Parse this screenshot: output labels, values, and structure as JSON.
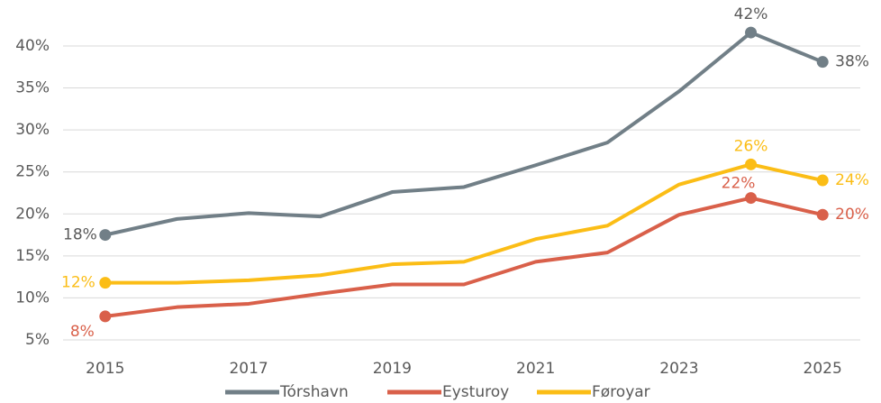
{
  "chart_data": {
    "type": "line",
    "x": [
      2015,
      2016,
      2017,
      2018,
      2019,
      2020,
      2021,
      2022,
      2023,
      2024,
      2025
    ],
    "xlim": [
      2014.5,
      2025.5
    ],
    "xticks": [
      2015,
      2017,
      2019,
      2021,
      2023,
      2025
    ],
    "ylim": [
      5,
      45
    ],
    "yticks": [
      {
        "value": 5,
        "label": "5%"
      },
      {
        "value": 10,
        "label": "10%"
      },
      {
        "value": 15,
        "label": "15%"
      },
      {
        "value": 20,
        "label": "20%"
      },
      {
        "value": 25,
        "label": "25%"
      },
      {
        "value": 30,
        "label": "30%"
      },
      {
        "value": 35,
        "label": "35%"
      },
      {
        "value": 40,
        "label": "40%"
      }
    ],
    "grid": true,
    "legend": "bottom",
    "series": [
      {
        "name": "Tórshavn",
        "color": "#717f87",
        "values": [
          17.5,
          19.4,
          20.1,
          19.7,
          22.6,
          23.2,
          25.8,
          28.5,
          34.6,
          41.6,
          38.1
        ],
        "value_labels": [
          "18%",
          null,
          null,
          null,
          null,
          null,
          null,
          null,
          null,
          "42%",
          "38%"
        ]
      },
      {
        "name": "Eysturoy",
        "color": "#d9604a",
        "values": [
          7.8,
          8.9,
          9.3,
          10.5,
          11.6,
          11.6,
          14.3,
          15.4,
          19.9,
          21.9,
          19.9
        ],
        "value_labels": [
          "8%",
          null,
          null,
          null,
          null,
          null,
          null,
          null,
          null,
          "22%",
          "20%"
        ]
      },
      {
        "name": "Føroyar",
        "color": "#fbbd16",
        "values": [
          11.8,
          11.8,
          12.1,
          12.7,
          14.0,
          14.3,
          17.0,
          18.6,
          23.5,
          25.9,
          24.0
        ],
        "value_labels": [
          "12%",
          null,
          null,
          null,
          null,
          null,
          null,
          null,
          null,
          "26%",
          "24%"
        ]
      }
    ]
  }
}
